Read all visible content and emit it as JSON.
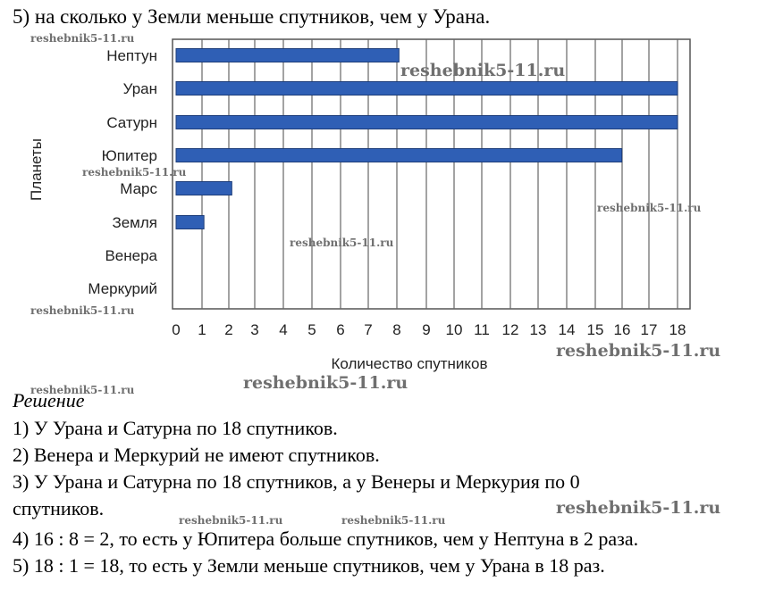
{
  "question": "5) на сколько у Земли меньше спутников, чем у Урана.",
  "chart_data": {
    "type": "bar",
    "orientation": "horizontal",
    "title": "",
    "xlabel": "Количество спутников",
    "ylabel": "Планеты",
    "categories": [
      "Нептун",
      "Уран",
      "Сатурн",
      "Юпитер",
      "Марс",
      "Земля",
      "Венера",
      "Меркурий"
    ],
    "values": [
      8,
      18,
      18,
      16,
      2,
      1,
      0,
      0
    ],
    "xticks": [
      "0",
      "1",
      "2",
      "3",
      "4",
      "5",
      "6",
      "7",
      "8",
      "9",
      "10",
      "11",
      "12",
      "13",
      "14",
      "15",
      "16",
      "17",
      "18"
    ],
    "xlim": [
      0,
      18
    ],
    "grid": "vertical",
    "bar_color": "#2f5fb5"
  },
  "watermarks": {
    "small": "reshebnik5-11.ru",
    "large": "reshebnik5-11.ru"
  },
  "solution": {
    "title": "Решение",
    "lines": [
      "1) У Урана и Сатурна по 18 спутников.",
      "2) Венера и Меркурий не имеют спутников.",
      "3) У Урана и Сатурна по 18 спутников, а у Венеры и Меркурия по 0",
      "спутников.",
      "4) 16 : 8 = 2, то есть у Юпитера больше спутников, чем у Нептуна в 2 раза.",
      "5) 18 : 1 = 18, то есть у Земли меньше спутников, чем у Урана в 18 раз."
    ]
  }
}
